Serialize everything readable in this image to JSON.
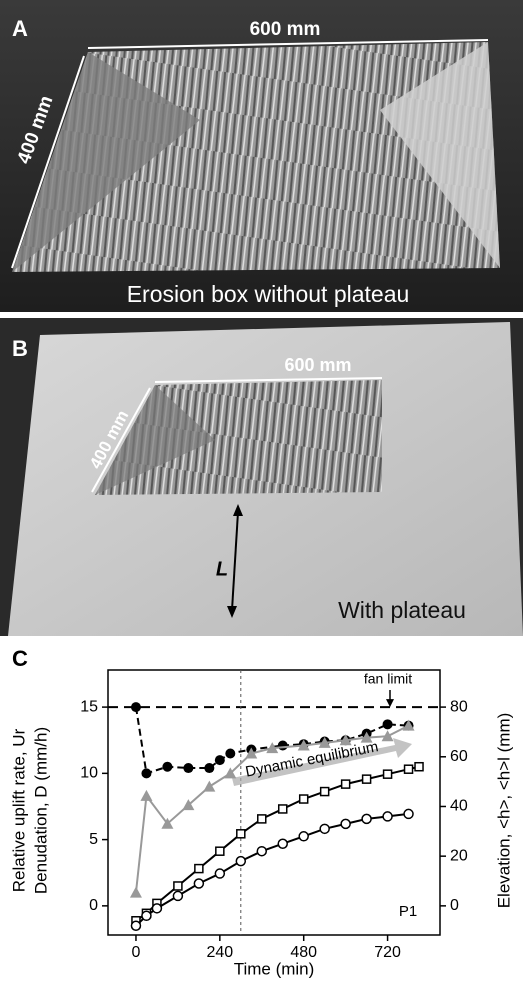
{
  "panel_a": {
    "label": "A",
    "width_label": "600 mm",
    "depth_label": "400 mm",
    "caption": "Erosion box without plateau"
  },
  "panel_b": {
    "label": "B",
    "width_label": "600 mm",
    "depth_label": "400 mm",
    "distance_label": "L",
    "caption": "With plateau"
  },
  "chart_data": {
    "type": "line",
    "panel_label": "C",
    "xlabel": "Time (min)",
    "ylabel": [
      "Relative uplift rate, Ur",
      "Denudation, D (mm/h)"
    ],
    "y2label": "Elevation, <h>, <h>l (mm)",
    "xlim": [
      -80,
      870
    ],
    "xticks": [
      0,
      240,
      480,
      720
    ],
    "ylim": [
      -2.2,
      17.8
    ],
    "yticks": [
      0,
      5,
      10,
      15
    ],
    "y2lim": [
      -11.73,
      94.93
    ],
    "y2ticks": [
      0,
      20,
      40,
      60,
      80
    ],
    "hline": 15,
    "vline": 300,
    "annotations": [
      "fan limit",
      "Dynamic equilibrium",
      "P1"
    ],
    "series": [
      {
        "marker": "filled-circle",
        "color": "#000000",
        "linestyle": "dashed",
        "x": [
          0,
          30,
          90,
          150,
          210,
          240,
          270,
          330,
          420,
          480,
          540,
          600,
          660,
          720,
          780
        ],
        "values": [
          15,
          10,
          10.5,
          10.4,
          10.4,
          11,
          11.5,
          11.8,
          12.1,
          12.2,
          12.4,
          12.5,
          13,
          13.7,
          13.6
        ]
      },
      {
        "marker": "triangle",
        "color": "#999999",
        "linestyle": "solid",
        "x": [
          0,
          30,
          90,
          150,
          210,
          270,
          330,
          390,
          480,
          540,
          600,
          660,
          720,
          780
        ],
        "values": [
          1,
          8.3,
          6.2,
          7.6,
          9,
          10,
          11.5,
          11.9,
          12.1,
          12.3,
          12.5,
          12.7,
          12.8,
          13.6
        ]
      },
      {
        "marker": "open-square",
        "color": "#000000",
        "linestyle": "solid",
        "axis": "y2",
        "x": [
          0,
          30,
          60,
          120,
          180,
          240,
          300,
          360,
          420,
          480,
          540,
          600,
          660,
          720,
          780,
          810
        ],
        "values": [
          -6,
          -3,
          1,
          8,
          15,
          22,
          29,
          35,
          39,
          43,
          46,
          49,
          51,
          53,
          55,
          56
        ]
      },
      {
        "marker": "open-circle",
        "color": "#000000",
        "linestyle": "solid",
        "axis": "y2",
        "x": [
          0,
          30,
          60,
          120,
          180,
          240,
          300,
          360,
          420,
          480,
          540,
          600,
          660,
          720,
          780
        ],
        "values": [
          -8,
          -4,
          -1,
          4,
          9,
          13,
          18,
          22,
          25,
          28,
          31,
          33,
          35,
          36,
          37
        ]
      }
    ]
  }
}
